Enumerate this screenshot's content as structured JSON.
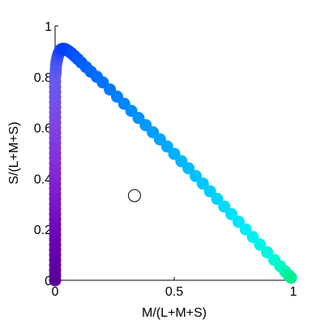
{
  "chart_data": {
    "type": "scatter",
    "title": "",
    "xlabel": "M/(L+M+S)",
    "ylabel": "S/(L+M+S)",
    "xlim": [
      0,
      1
    ],
    "ylim": [
      0,
      1
    ],
    "x_ticks": [
      "0",
      "0.5",
      "1"
    ],
    "y_ticks": [
      "0",
      "0.2",
      "0.4",
      "0.6",
      "0.8",
      "1"
    ],
    "x_tick_values": [
      0,
      0.5,
      1
    ],
    "y_tick_values": [
      0,
      0.2,
      0.4,
      0.6,
      0.8,
      1
    ],
    "grid": false,
    "series": [
      {
        "marker": "filled-circle",
        "x": [
          0.0,
          0.0,
          0.0,
          0.0,
          0.0,
          0.0,
          0.0,
          0.0,
          0.0,
          0.0,
          0.0,
          0.0,
          0.0,
          0.0,
          0.0,
          0.0,
          0.0,
          0.0,
          0.0,
          0.0,
          0.0,
          0.0,
          0.0,
          0.0,
          0.0,
          0.0,
          0.0,
          0.0,
          0.0,
          0.0,
          0.0,
          0.0,
          0.0,
          0.0,
          0.0,
          0.0,
          0.0,
          0.0,
          0.0,
          0.0,
          0.0,
          0.002,
          0.003,
          0.004,
          0.006,
          0.008,
          0.01,
          0.012,
          0.014,
          0.016,
          0.018,
          0.02,
          0.022,
          0.024,
          0.028,
          0.032,
          0.037,
          0.043,
          0.05,
          0.058,
          0.068,
          0.08,
          0.095,
          0.11,
          0.13,
          0.15,
          0.175,
          0.2,
          0.23,
          0.26,
          0.29,
          0.32,
          0.35,
          0.38,
          0.41,
          0.44,
          0.47,
          0.5,
          0.53,
          0.56,
          0.59,
          0.62,
          0.65,
          0.68,
          0.71,
          0.74,
          0.77,
          0.8,
          0.83,
          0.86,
          0.89,
          0.92,
          0.945,
          0.965,
          0.98,
          0.99
        ],
        "y": [
          0.0,
          0.02,
          0.04,
          0.06,
          0.08,
          0.1,
          0.12,
          0.14,
          0.16,
          0.18,
          0.2,
          0.22,
          0.24,
          0.26,
          0.28,
          0.3,
          0.32,
          0.34,
          0.36,
          0.38,
          0.4,
          0.42,
          0.44,
          0.46,
          0.48,
          0.5,
          0.52,
          0.54,
          0.56,
          0.58,
          0.6,
          0.62,
          0.64,
          0.66,
          0.68,
          0.7,
          0.72,
          0.74,
          0.76,
          0.78,
          0.8,
          0.815,
          0.83,
          0.845,
          0.858,
          0.868,
          0.876,
          0.883,
          0.889,
          0.894,
          0.898,
          0.902,
          0.905,
          0.907,
          0.909,
          0.91,
          0.91,
          0.908,
          0.905,
          0.9,
          0.893,
          0.883,
          0.87,
          0.856,
          0.838,
          0.82,
          0.8,
          0.778,
          0.75,
          0.722,
          0.694,
          0.666,
          0.638,
          0.61,
          0.582,
          0.554,
          0.526,
          0.497,
          0.468,
          0.44,
          0.41,
          0.38,
          0.35,
          0.32,
          0.29,
          0.26,
          0.23,
          0.2,
          0.17,
          0.14,
          0.11,
          0.08,
          0.055,
          0.035,
          0.02,
          0.01
        ],
        "colors": [
          "#5a0096",
          "#5c009a",
          "#5e009e",
          "#6000a2",
          "#6200a6",
          "#6400aa",
          "#6600ad",
          "#6800b0",
          "#6a00b3",
          "#6c02b6",
          "#6e05b9",
          "#7008bc",
          "#720bbe",
          "#740ec1",
          "#7611c4",
          "#7814c6",
          "#7a17c9",
          "#7c1acb",
          "#7e1dcd",
          "#7f20cf",
          "#8023d1",
          "#8126d3",
          "#8229d5",
          "#822cd7",
          "#822fd9",
          "#8232db",
          "#8235dc",
          "#8238de",
          "#813be0",
          "#803ee1",
          "#7f41e3",
          "#7d44e4",
          "#7b47e6",
          "#7949e7",
          "#774ce8",
          "#744fea",
          "#7152eb",
          "#6e54ec",
          "#6b56ed",
          "#6858ee",
          "#645aef",
          "#5e5af0",
          "#5858f1",
          "#5256f2",
          "#4c54f3",
          "#4652f4",
          "#4050f5",
          "#3a4ef6",
          "#344cf7",
          "#2e4af8",
          "#2848f9",
          "#2246fa",
          "#1c44fb",
          "#1642fc",
          "#1040fd",
          "#0a3efe",
          "#053dff",
          "#003dff",
          "#0040ff",
          "#0045ff",
          "#004aff",
          "#0050ff",
          "#0056ff",
          "#005cff",
          "#0062ff",
          "#0068ff",
          "#006eff",
          "#0074ff",
          "#007aff",
          "#0080ff",
          "#0086ff",
          "#008cff",
          "#0092ff",
          "#0098ff",
          "#009eff",
          "#00a4ff",
          "#00aaff",
          "#00b0ff",
          "#00b6ff",
          "#00bcff",
          "#00c2ff",
          "#00c8ff",
          "#00ceff",
          "#00d4ff",
          "#00daff",
          "#00e0ff",
          "#00e6fc",
          "#00ecf8",
          "#00f0f2",
          "#00f4ea",
          "#00f6e0",
          "#00f8d4",
          "#00f8c6",
          "#00f6b6",
          "#00f2a4",
          "#00ee92"
        ]
      },
      {
        "marker": "open-circle",
        "x": [
          0.333
        ],
        "y": [
          0.333
        ],
        "colors": [
          "#000000"
        ]
      }
    ]
  }
}
